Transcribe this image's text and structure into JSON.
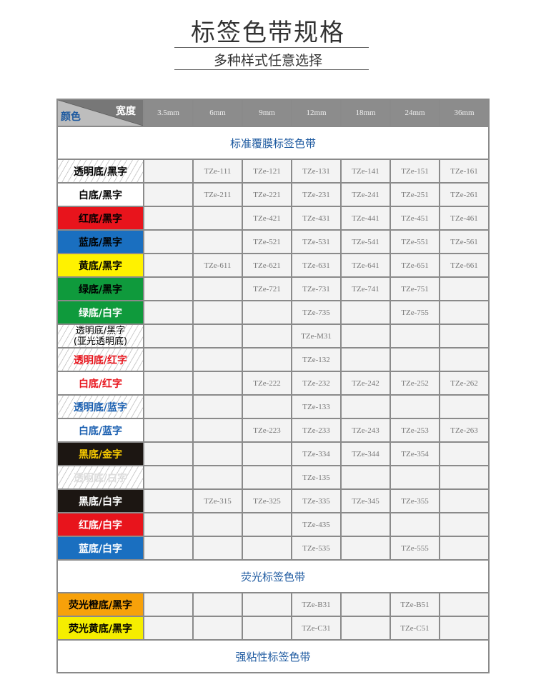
{
  "title": "标签色带规格",
  "subtitle": "多种样式任意选择",
  "header": {
    "width_label": "宽度",
    "color_label": "颜色",
    "widths": [
      "3.5mm",
      "6mm",
      "9mm",
      "12mm",
      "18mm",
      "24mm",
      "36mm"
    ]
  },
  "sections": [
    {
      "title": "标准覆膜标签色带",
      "rows": [
        {
          "label": "透明底/黑字",
          "bg": "clear",
          "fg": "#000000",
          "cells": [
            "",
            "TZe-111",
            "TZe-121",
            "TZe-131",
            "TZe-141",
            "TZe-151",
            "TZe-161"
          ]
        },
        {
          "label": "白底/黑字",
          "bg": "#ffffff",
          "fg": "#000000",
          "cells": [
            "",
            "TZe-211",
            "TZe-221",
            "TZe-231",
            "TZe-241",
            "TZe-251",
            "TZe-261"
          ]
        },
        {
          "label": "红底/黑字",
          "bg": "#e8141c",
          "fg": "#000000",
          "cells": [
            "",
            "",
            "TZe-421",
            "TZe-431",
            "TZe-441",
            "TZe-451",
            "TZe-461"
          ]
        },
        {
          "label": "蓝底/黑字",
          "bg": "#1a6fc0",
          "fg": "#000000",
          "cells": [
            "",
            "",
            "TZe-521",
            "TZe-531",
            "TZe-541",
            "TZe-551",
            "TZe-561"
          ]
        },
        {
          "label": "黄底/黑字",
          "bg": "#fff200",
          "fg": "#000000",
          "cells": [
            "",
            "TZe-611",
            "TZe-621",
            "TZe-631",
            "TZe-641",
            "TZe-651",
            "TZe-661"
          ]
        },
        {
          "label": "绿底/黑字",
          "bg": "#0f9a3c",
          "fg": "#000000",
          "cells": [
            "",
            "",
            "TZe-721",
            "TZe-731",
            "TZe-741",
            "TZe-751",
            ""
          ]
        },
        {
          "label": "绿底/白字",
          "bg": "#0f9a3c",
          "fg": "#ffffff",
          "cells": [
            "",
            "",
            "",
            "TZe-735",
            "",
            "TZe-755",
            ""
          ]
        },
        {
          "label": "透明底/黑字\n(亚光透明底)",
          "bg": "clear",
          "fg": "#000000",
          "cells": [
            "",
            "",
            "",
            "TZe-M31",
            "",
            "",
            ""
          ]
        },
        {
          "label": "透明底/红字",
          "bg": "clear",
          "fg": "#e8141c",
          "cells": [
            "",
            "",
            "",
            "TZe-132",
            "",
            "",
            ""
          ]
        },
        {
          "label": "白底/红字",
          "bg": "#ffffff",
          "fg": "#e8141c",
          "cells": [
            "",
            "",
            "TZe-222",
            "TZe-232",
            "TZe-242",
            "TZe-252",
            "TZe-262"
          ]
        },
        {
          "label": "透明底/蓝字",
          "bg": "clear",
          "fg": "#1a5fb0",
          "cells": [
            "",
            "",
            "",
            "TZe-133",
            "",
            "",
            ""
          ]
        },
        {
          "label": "白底/蓝字",
          "bg": "#ffffff",
          "fg": "#1a5fb0",
          "cells": [
            "",
            "",
            "TZe-223",
            "TZe-233",
            "TZe-243",
            "TZe-253",
            "TZe-263"
          ]
        },
        {
          "label": "黑底/金字",
          "bg": "#1c1612",
          "fg": "#f5c800",
          "cells": [
            "",
            "",
            "",
            "TZe-334",
            "TZe-344",
            "TZe-354",
            ""
          ]
        },
        {
          "label": "透明底/白字",
          "bg": "clear",
          "fg": "#dddddd",
          "cells": [
            "",
            "",
            "",
            "TZe-135",
            "",
            "",
            ""
          ]
        },
        {
          "label": "黑底/白字",
          "bg": "#1c1612",
          "fg": "#ffffff",
          "cells": [
            "",
            "TZe-315",
            "TZe-325",
            "TZe-335",
            "TZe-345",
            "TZe-355",
            ""
          ]
        },
        {
          "label": "红底/白字",
          "bg": "#e8141c",
          "fg": "#ffffff",
          "cells": [
            "",
            "",
            "",
            "TZe-435",
            "",
            "",
            ""
          ]
        },
        {
          "label": "蓝底/白字",
          "bg": "#1a6fc0",
          "fg": "#ffffff",
          "cells": [
            "",
            "",
            "",
            "TZe-535",
            "",
            "TZe-555",
            ""
          ]
        }
      ]
    },
    {
      "title": "荧光标签色带",
      "rows": [
        {
          "label": "荧光橙底/黑字",
          "bg": "#f7a10a",
          "fg": "#000000",
          "cells": [
            "",
            "",
            "",
            "TZe-B31",
            "",
            "TZe-B51",
            ""
          ]
        },
        {
          "label": "荧光黄底/黑字",
          "bg": "#f5ee00",
          "fg": "#000000",
          "cells": [
            "",
            "",
            "",
            "TZe-C31",
            "",
            "TZe-C51",
            ""
          ]
        }
      ]
    },
    {
      "title": "强粘性标签色带",
      "rows": []
    }
  ]
}
